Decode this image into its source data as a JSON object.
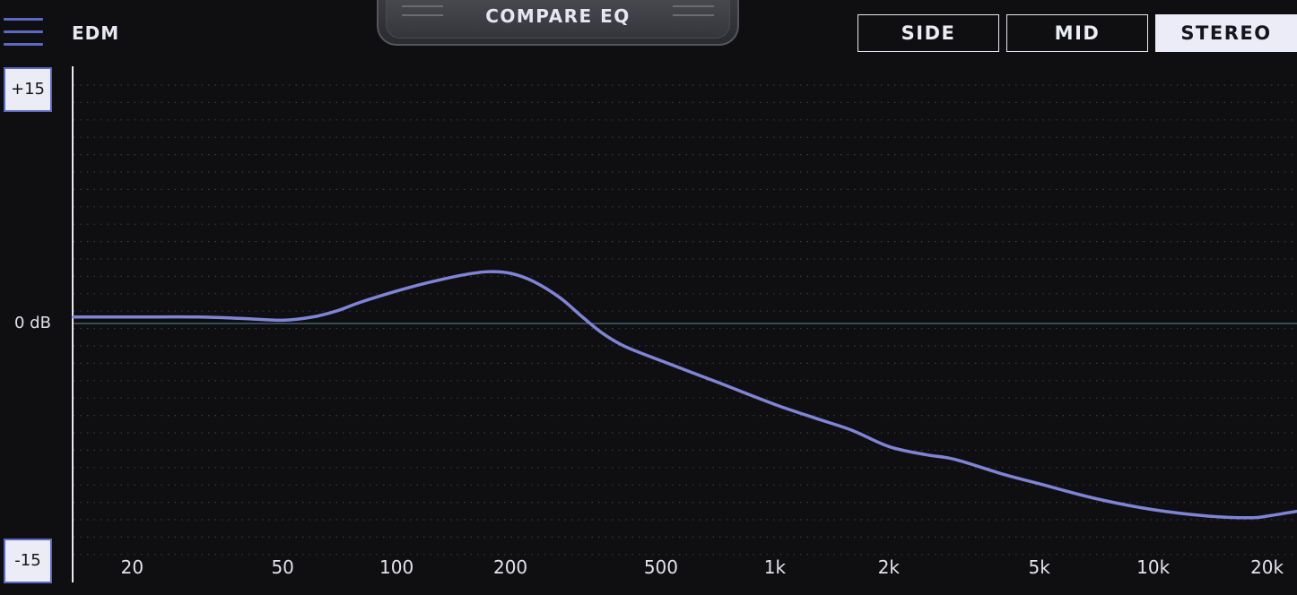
{
  "preset": {
    "name": "EDM"
  },
  "compare": {
    "label": "COMPARE EQ"
  },
  "modes": [
    {
      "label": "SIDE",
      "active": false
    },
    {
      "label": "MID",
      "active": false
    },
    {
      "label": "STEREO",
      "active": true
    }
  ],
  "db_scale": {
    "top": "+15",
    "center": "0 dB",
    "bottom": "-15"
  },
  "colors": {
    "curve": "#7f85d6",
    "accent": "#5b68c4",
    "zero_line": "#44606a"
  },
  "chart_data": {
    "type": "line",
    "x_scale": "log",
    "xlim": [
      14,
      24000
    ],
    "ylim": [
      -15,
      15
    ],
    "xlabel": "",
    "ylabel": "",
    "x_ticks": [
      {
        "value": 20,
        "label": "20"
      },
      {
        "value": 50,
        "label": "50"
      },
      {
        "value": 100,
        "label": "100"
      },
      {
        "value": 200,
        "label": "200"
      },
      {
        "value": 500,
        "label": "500"
      },
      {
        "value": 1000,
        "label": "1k"
      },
      {
        "value": 2000,
        "label": "2k"
      },
      {
        "value": 5000,
        "label": "5k"
      },
      {
        "value": 10000,
        "label": "10k"
      },
      {
        "value": 20000,
        "label": "20k"
      }
    ],
    "series": [
      {
        "points": [
          [
            14,
            0.4
          ],
          [
            20,
            0.4
          ],
          [
            30,
            0.4
          ],
          [
            40,
            0.3
          ],
          [
            50,
            0.2
          ],
          [
            60,
            0.4
          ],
          [
            70,
            0.8
          ],
          [
            80,
            1.3
          ],
          [
            100,
            2.0
          ],
          [
            120,
            2.5
          ],
          [
            150,
            3.0
          ],
          [
            175,
            3.2
          ],
          [
            200,
            3.1
          ],
          [
            230,
            2.6
          ],
          [
            270,
            1.6
          ],
          [
            310,
            0.4
          ],
          [
            350,
            -0.6
          ],
          [
            400,
            -1.4
          ],
          [
            500,
            -2.3
          ],
          [
            700,
            -3.6
          ],
          [
            1000,
            -5.0
          ],
          [
            1300,
            -5.9
          ],
          [
            1600,
            -6.6
          ],
          [
            2000,
            -7.6
          ],
          [
            2500,
            -8.1
          ],
          [
            3000,
            -8.4
          ],
          [
            4000,
            -9.3
          ],
          [
            5000,
            -9.9
          ],
          [
            7000,
            -10.8
          ],
          [
            10000,
            -11.5
          ],
          [
            14000,
            -11.9
          ],
          [
            18000,
            -12.0
          ],
          [
            20000,
            -11.9
          ],
          [
            24000,
            -11.6
          ]
        ]
      }
    ]
  }
}
